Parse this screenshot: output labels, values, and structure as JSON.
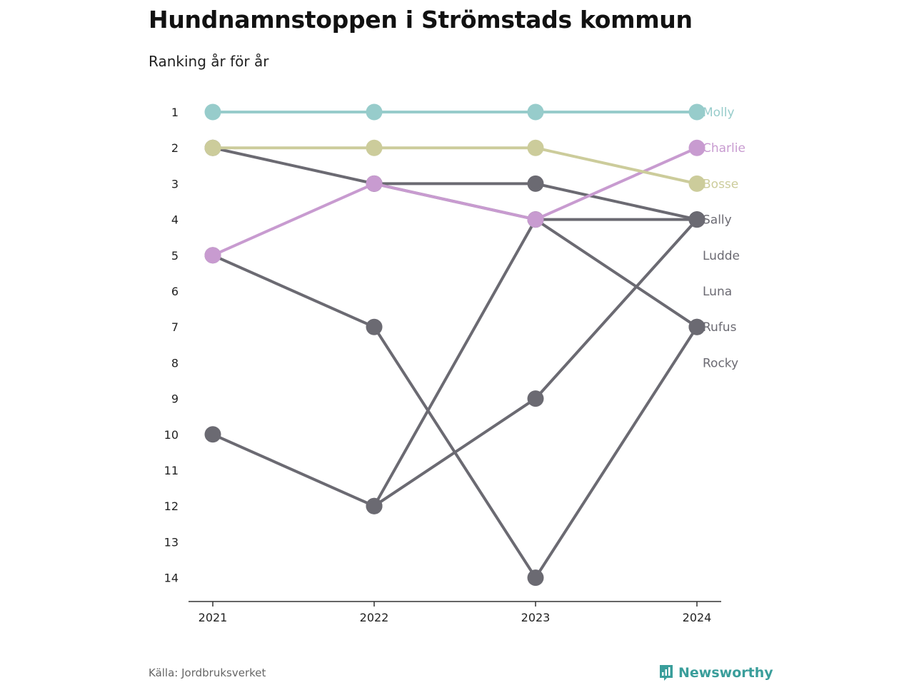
{
  "title": "Hundnamnstoppen i Strömstads kommun",
  "subtitle": "Ranking år för år",
  "source": "Källa: Jordbruksverket",
  "brand": {
    "name": "Newsworthy",
    "icon": "newsworthy-logo-icon",
    "color": "#3a9e9b"
  },
  "chart_data": {
    "type": "line",
    "x": [
      "2021",
      "2022",
      "2023",
      "2024"
    ],
    "y_ticks": [
      1,
      2,
      3,
      4,
      5,
      6,
      7,
      8,
      9,
      10,
      11,
      12,
      13,
      14
    ],
    "y_range": [
      1,
      14
    ],
    "y_inverted": true,
    "grid": false,
    "legend": "direct labels at right end of lines",
    "colors": {
      "highlight_molly": "#97cccb",
      "highlight_charlie": "#c89bd0",
      "highlight_bosse": "#cccc9b",
      "default": "#6b6a72"
    },
    "series": [
      {
        "name": "Molly",
        "color": "#97cccb",
        "values": [
          1,
          1,
          1,
          1
        ]
      },
      {
        "name": "Charlie",
        "color": "#c89bd0",
        "values": [
          5,
          3,
          4,
          2
        ]
      },
      {
        "name": "Bosse",
        "color": "#cccc9b",
        "values": [
          2,
          2,
          2,
          3
        ]
      },
      {
        "name": "Sally",
        "color": "#6b6a72",
        "values": [
          2,
          3,
          3,
          4
        ]
      },
      {
        "name": "Ludde",
        "color": "#6b6a72",
        "values": [
          null,
          12,
          4,
          4
        ]
      },
      {
        "name": "Luna",
        "color": "#6b6a72",
        "values": [
          10,
          12,
          9,
          4
        ]
      },
      {
        "name": "Rufus",
        "color": "#6b6a72",
        "values": [
          null,
          3,
          4,
          7
        ]
      },
      {
        "name": "Rocky",
        "color": "#6b6a72",
        "values": [
          5,
          7,
          14,
          7
        ]
      }
    ],
    "end_labels": [
      {
        "name": "Molly",
        "rank": 1
      },
      {
        "name": "Charlie",
        "rank": 2
      },
      {
        "name": "Bosse",
        "rank": 3
      },
      {
        "name": "Sally",
        "rank": 4
      },
      {
        "name": "Ludde",
        "rank": 5
      },
      {
        "name": "Luna",
        "rank": 6
      },
      {
        "name": "Rufus",
        "rank": 7
      },
      {
        "name": "Rocky",
        "rank": 8
      }
    ]
  }
}
